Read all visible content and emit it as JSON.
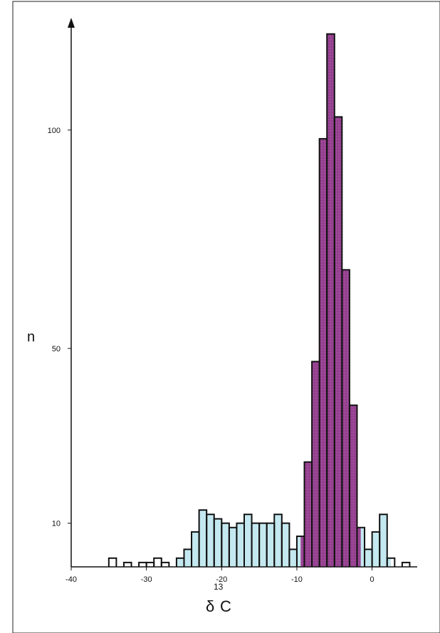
{
  "chart_data": {
    "type": "bar",
    "title": "",
    "xlabel_prefix": "δ",
    "xlabel_superscript": "13",
    "xlabel_main": "C",
    "ylabel": "n",
    "xlim": [
      -40,
      6
    ],
    "ylim": [
      0,
      120
    ],
    "x_ticks": [
      -40,
      -30,
      -20,
      -10,
      0
    ],
    "x_tick_labels": [
      "-40",
      "-30",
      "-20",
      "-10",
      "0"
    ],
    "y_ticks": [
      10,
      50,
      100
    ],
    "y_tick_labels": [
      "10",
      "50",
      "100"
    ],
    "grid": false,
    "bin_width": 1,
    "colors": {
      "primary_fill": "#c4e8ef",
      "secondary_fill": "#9c4696",
      "outline": "#111111",
      "axis": "#111111"
    },
    "regions": [
      {
        "label": "",
        "range": [
          -26,
          -9.5
        ],
        "fill": "#c4e8ef"
      },
      {
        "label": "",
        "range": [
          -9.5,
          -1.5
        ],
        "fill": "#9c4696"
      },
      {
        "label": "",
        "range": [
          -1.5,
          2.5
        ],
        "fill": "#c4e8ef"
      }
    ],
    "bins": [
      {
        "x0": -35,
        "x1": -34,
        "y": 2
      },
      {
        "x0": -33,
        "x1": -32,
        "y": 1
      },
      {
        "x0": -31,
        "x1": -30,
        "y": 1
      },
      {
        "x0": -30,
        "x1": -29,
        "y": 1
      },
      {
        "x0": -29,
        "x1": -28,
        "y": 2
      },
      {
        "x0": -28,
        "x1": -27,
        "y": 1
      },
      {
        "x0": -26,
        "x1": -25,
        "y": 2
      },
      {
        "x0": -25,
        "x1": -24,
        "y": 4
      },
      {
        "x0": -24,
        "x1": -23,
        "y": 8
      },
      {
        "x0": -23,
        "x1": -22,
        "y": 13
      },
      {
        "x0": -22,
        "x1": -21,
        "y": 12
      },
      {
        "x0": -21,
        "x1": -20,
        "y": 11
      },
      {
        "x0": -20,
        "x1": -19,
        "y": 10
      },
      {
        "x0": -19,
        "x1": -18,
        "y": 9
      },
      {
        "x0": -18,
        "x1": -17,
        "y": 10
      },
      {
        "x0": -17,
        "x1": -16,
        "y": 12
      },
      {
        "x0": -16,
        "x1": -15,
        "y": 10
      },
      {
        "x0": -15,
        "x1": -14,
        "y": 10
      },
      {
        "x0": -14,
        "x1": -13,
        "y": 10
      },
      {
        "x0": -13,
        "x1": -12,
        "y": 12
      },
      {
        "x0": -12,
        "x1": -11,
        "y": 10
      },
      {
        "x0": -11,
        "x1": -10,
        "y": 4
      },
      {
        "x0": -10,
        "x1": -9,
        "y": 7
      },
      {
        "x0": -9,
        "x1": -8,
        "y": 24
      },
      {
        "x0": -8,
        "x1": -7,
        "y": 47
      },
      {
        "x0": -7,
        "x1": -6,
        "y": 98
      },
      {
        "x0": -6,
        "x1": -5,
        "y": 122
      },
      {
        "x0": -5,
        "x1": -4,
        "y": 103
      },
      {
        "x0": -4,
        "x1": -3,
        "y": 68
      },
      {
        "x0": -3,
        "x1": -2,
        "y": 37
      },
      {
        "x0": -2,
        "x1": -1,
        "y": 9
      },
      {
        "x0": -1,
        "x1": 0,
        "y": 4
      },
      {
        "x0": 0,
        "x1": 1,
        "y": 8
      },
      {
        "x0": 1,
        "x1": 2,
        "y": 12
      },
      {
        "x0": 2,
        "x1": 3,
        "y": 2
      },
      {
        "x0": 4,
        "x1": 5,
        "y": 1
      }
    ]
  }
}
